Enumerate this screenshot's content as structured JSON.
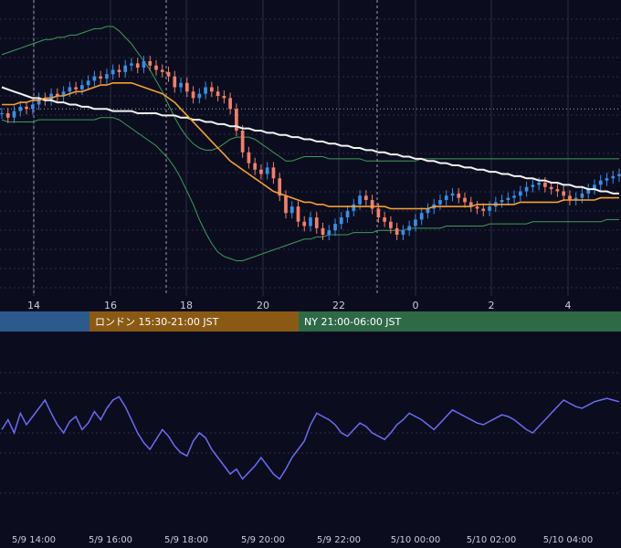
{
  "colors": {
    "background": "#0b0d1f",
    "grid": "#2a2e45",
    "candle_up": "#3a8ee6",
    "candle_down": "#f0806a",
    "bollinger": "#3f9b5a",
    "ma_short": "#f5a032",
    "ma_long": "#f2f2f2",
    "oscillator": "#6a6cf0"
  },
  "sessions": [
    {
      "label": "",
      "color": "#2d5a8c"
    },
    {
      "label": "ロンドン 15:30-21:00 JST",
      "color": "#8a5a14"
    },
    {
      "label": "NY 21:00-06:00 JST",
      "color": "#2f6a47"
    }
  ],
  "chart_data": [
    {
      "type": "candlestick",
      "x_ticks": [
        "14",
        "16",
        "18",
        "20",
        "22",
        "0",
        "2",
        "4"
      ],
      "series": [
        {
          "indicator": "price",
          "close": [
            148,
            146,
            149,
            151,
            150,
            152,
            155,
            154,
            157,
            156,
            158,
            160,
            159,
            161,
            163,
            165,
            164,
            166,
            168,
            167,
            170,
            171,
            169,
            172,
            170,
            168,
            167,
            165,
            160,
            162,
            158,
            155,
            157,
            160,
            158,
            156,
            155,
            150,
            140,
            130,
            125,
            122,
            120,
            123,
            118,
            110,
            102,
            105,
            98,
            96,
            100,
            95,
            92,
            94,
            97,
            100,
            103,
            106,
            110,
            108,
            104,
            100,
            98,
            95,
            92,
            94,
            96,
            99,
            102,
            104,
            106,
            108,
            110,
            111,
            109,
            107,
            105,
            104,
            103,
            105,
            107,
            108,
            109,
            110,
            112,
            114,
            115,
            116,
            114,
            113,
            112,
            110,
            108,
            109,
            111,
            113,
            115,
            117,
            118,
            119,
            120
          ]
        },
        {
          "indicator": "bollinger_upper",
          "values": [
            175,
            176,
            177,
            178,
            179,
            180,
            181,
            182,
            182,
            183,
            183,
            184,
            184,
            185,
            186,
            187,
            187,
            188,
            188,
            186,
            183,
            180,
            176,
            172,
            168,
            163,
            158,
            152,
            146,
            141,
            137,
            134,
            132,
            131,
            131,
            132,
            134,
            136,
            137,
            137,
            137,
            136,
            134,
            132,
            130,
            128,
            126,
            126,
            127,
            128,
            128,
            128,
            128,
            127,
            127,
            127,
            127,
            127,
            127,
            126,
            126,
            126,
            126,
            126,
            126,
            126,
            126,
            126,
            127,
            127,
            127,
            127,
            127,
            127,
            127,
            127,
            127,
            127,
            127,
            127,
            127,
            127,
            127,
            127,
            127,
            127,
            127,
            127,
            127,
            127,
            127,
            127,
            127,
            127,
            127,
            127,
            127,
            127,
            127,
            127,
            127
          ]
        },
        {
          "indicator": "bollinger_lower",
          "values": [
            145,
            144,
            144,
            144,
            144,
            144,
            145,
            145,
            145,
            145,
            145,
            145,
            145,
            145,
            145,
            145,
            146,
            146,
            146,
            145,
            143,
            141,
            139,
            137,
            135,
            133,
            130,
            127,
            123,
            118,
            112,
            106,
            99,
            93,
            88,
            84,
            82,
            81,
            80,
            80,
            81,
            82,
            83,
            84,
            85,
            86,
            87,
            88,
            89,
            90,
            90,
            91,
            91,
            92,
            92,
            92,
            92,
            93,
            93,
            93,
            93,
            94,
            94,
            94,
            94,
            94,
            95,
            95,
            95,
            95,
            95,
            95,
            96,
            96,
            96,
            96,
            96,
            96,
            96,
            97,
            97,
            97,
            97,
            97,
            97,
            97,
            98,
            98,
            98,
            98,
            98,
            98,
            98,
            98,
            98,
            98,
            98,
            98,
            99,
            99,
            99
          ]
        },
        {
          "indicator": "moving_average_short",
          "values": [
            152,
            152,
            152,
            153,
            153,
            154,
            154,
            155,
            155,
            156,
            156,
            157,
            158,
            158,
            159,
            160,
            161,
            161,
            162,
            162,
            162,
            162,
            161,
            160,
            159,
            158,
            157,
            155,
            153,
            150,
            147,
            144,
            141,
            138,
            135,
            132,
            129,
            126,
            124,
            122,
            120,
            118,
            116,
            114,
            112,
            111,
            110,
            109,
            108,
            107,
            107,
            106,
            106,
            105,
            105,
            105,
            105,
            105,
            105,
            105,
            105,
            105,
            105,
            104,
            104,
            104,
            104,
            104,
            104,
            104,
            105,
            105,
            105,
            105,
            105,
            105,
            105,
            106,
            106,
            106,
            106,
            106,
            106,
            106,
            107,
            107,
            107,
            107,
            107,
            107,
            107,
            108,
            108,
            108,
            108,
            108,
            108,
            109,
            109,
            109,
            109
          ]
        },
        {
          "indicator": "moving_average_long",
          "values": [
            160,
            159,
            158,
            157,
            156,
            155,
            155,
            154,
            154,
            153,
            153,
            152,
            152,
            151,
            151,
            150,
            150,
            150,
            149,
            149,
            149,
            149,
            148,
            148,
            148,
            148,
            147,
            147,
            147,
            146,
            146,
            145,
            145,
            144,
            144,
            143,
            143,
            142,
            142,
            141,
            141,
            140,
            140,
            139,
            139,
            138,
            138,
            137,
            137,
            136,
            136,
            135,
            135,
            134,
            134,
            133,
            133,
            132,
            132,
            131,
            131,
            130,
            130,
            129,
            129,
            128,
            128,
            127,
            127,
            126,
            126,
            125,
            125,
            124,
            124,
            123,
            123,
            122,
            122,
            121,
            121,
            120,
            120,
            119,
            119,
            118,
            118,
            117,
            117,
            116,
            116,
            115,
            115,
            114,
            114,
            113,
            113,
            112,
            112,
            111,
            111
          ]
        }
      ]
    },
    {
      "type": "line",
      "x_ticks": [
        "5/9 14:00",
        "5/9 16:00",
        "5/9 18:00",
        "5/9 20:00",
        "5/9 22:00",
        "5/10 00:00",
        "5/10 02:00",
        "5/10 04:00"
      ],
      "series": [
        {
          "indicator": "oscillator",
          "values": [
            52,
            58,
            50,
            62,
            55,
            60,
            65,
            70,
            62,
            55,
            50,
            57,
            60,
            52,
            56,
            63,
            58,
            65,
            70,
            72,
            66,
            58,
            50,
            44,
            40,
            46,
            52,
            48,
            42,
            38,
            36,
            45,
            50,
            47,
            40,
            35,
            30,
            25,
            28,
            22,
            26,
            30,
            35,
            30,
            25,
            22,
            28,
            35,
            40,
            45,
            55,
            62,
            60,
            58,
            55,
            50,
            48,
            52,
            56,
            54,
            50,
            48,
            46,
            50,
            55,
            58,
            62,
            60,
            58,
            55,
            52,
            56,
            60,
            64,
            62,
            60,
            58,
            56,
            55,
            57,
            59,
            61,
            60,
            58,
            55,
            52,
            50,
            54,
            58,
            62,
            66,
            70,
            68,
            66,
            65,
            67,
            69,
            70,
            71,
            70,
            69
          ]
        }
      ]
    }
  ]
}
